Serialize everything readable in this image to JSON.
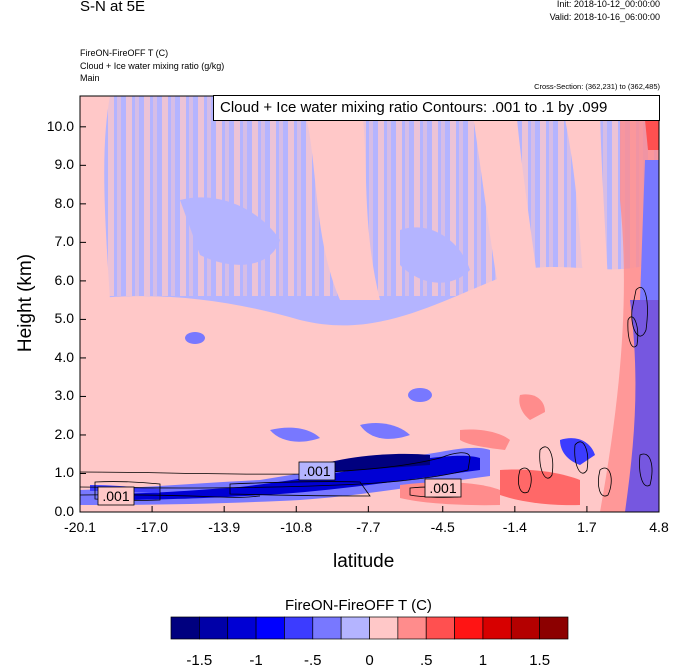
{
  "header": {
    "title_left": "S-N at 5E",
    "init": "Init: 2018-10-12_00:00:00",
    "valid": "Valid: 2018-10-16_06:00:00",
    "field_line": "FireON-FireOFF T   (C)",
    "contour_line": "Cloud + Ice water mixing ratio   (g/kg)",
    "level_line": "Main",
    "cross_section": "Cross-Section: (362,231) to (362,485)",
    "contour_info": "Cloud + Ice water mixing ratio Contours: .001 to .1 by .099"
  },
  "chart_data": {
    "type": "heatmap",
    "xlabel": "latitude",
    "ylabel": "Height (km)",
    "x_ticks": [
      "-20.1",
      "-17.0",
      "-13.9",
      "-10.8",
      "-7.7",
      "-4.5",
      "-1.4",
      "1.7",
      "4.8"
    ],
    "y_ticks": [
      "0.0",
      "1.0",
      "2.0",
      "3.0",
      "4.0",
      "5.0",
      "6.0",
      "7.0",
      "8.0",
      "9.0",
      "10.0"
    ],
    "xlim": [
      -20.1,
      4.8
    ],
    "ylim": [
      0.0,
      10.8
    ],
    "colorbar": {
      "title": "FireON-FireOFF T  (C)",
      "labels": [
        "-1.5",
        "-1",
        "-.5",
        "0",
        ".5",
        "1",
        "1.5"
      ],
      "colors": [
        "#00007f",
        "#0000a8",
        "#0000d4",
        "#0000ff",
        "#3c3cff",
        "#7878ff",
        "#b4b4ff",
        "#ffc8c8",
        "#ff8c8c",
        "#ff5050",
        "#ff1414",
        "#d70000",
        "#b40000",
        "#8c0000"
      ]
    },
    "contour_labels": [
      ".001",
      ".001",
      ".001"
    ],
    "colors": {
      "light_blue": "#b4b4ff",
      "light_pink": "#ffc8c8"
    }
  }
}
